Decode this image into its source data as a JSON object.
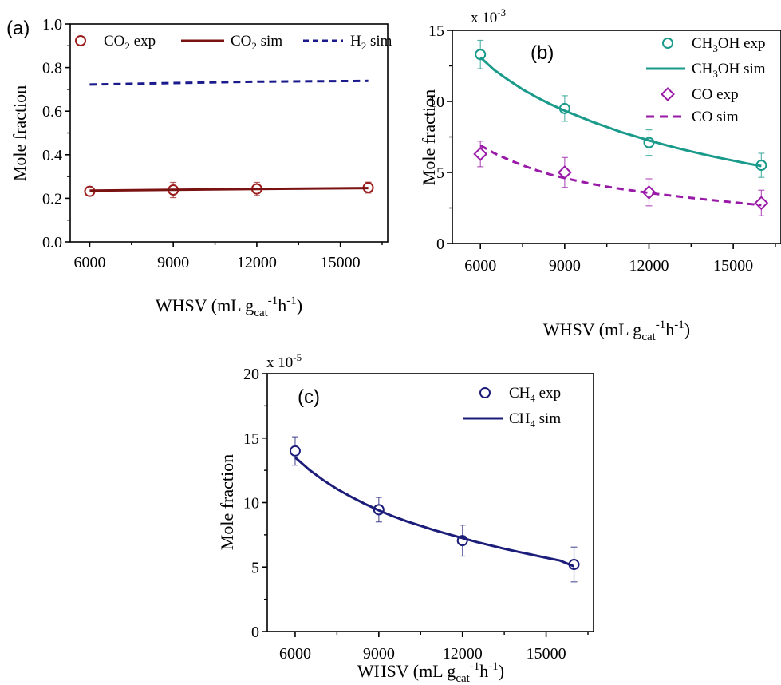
{
  "chart_data": [
    {
      "id": "a",
      "panel_label": "(a)",
      "type": "line",
      "xlabel": {
        "main": "WHSV (mL g",
        "sub": "cat",
        "sup1": "-1",
        "mid": "h",
        "sup2": "-1",
        "end": ")"
      },
      "ylabel": "Mole fraction",
      "xlim": [
        5300,
        16700
      ],
      "ylim": [
        0,
        1.0
      ],
      "xticks": [
        6000,
        9000,
        12000,
        15000
      ],
      "xtick_labels": [
        "6000",
        "9000",
        "12000",
        "15000"
      ],
      "yticks": [
        0,
        0.2,
        0.4,
        0.6,
        0.8,
        1.0
      ],
      "ytick_labels": [
        "0.0",
        "0.2",
        "0.4",
        "0.6",
        "0.8",
        "1.0"
      ],
      "exponent_label": "",
      "grid": false,
      "legend_position": "top",
      "series": [
        {
          "name": "CO₂ exp",
          "kind": "exp",
          "marker": "circle",
          "color": "#9b1c1c",
          "x": [
            6000,
            9000,
            12000,
            16000
          ],
          "y": [
            0.232,
            0.238,
            0.243,
            0.249
          ],
          "err": [
            0.02,
            0.035,
            0.03,
            0.025
          ]
        },
        {
          "name": "CO₂ sim",
          "kind": "sim",
          "style": "solid",
          "color": "#7a1212",
          "x": [
            6000,
            9000,
            12000,
            16000
          ],
          "y": [
            0.235,
            0.239,
            0.243,
            0.247
          ]
        },
        {
          "name": "H₂ sim",
          "kind": "sim",
          "style": "dashed",
          "color": "#1a1a8c",
          "x": [
            6000,
            9000,
            12000,
            16000
          ],
          "y": [
            0.722,
            0.729,
            0.735,
            0.739
          ]
        }
      ]
    },
    {
      "id": "b",
      "panel_label": "(b)",
      "type": "line",
      "xlabel": {
        "main": "WHSV (mL g",
        "sub": "cat",
        "sup1": "-1",
        "mid": "h",
        "sup2": "-1",
        "end": ")"
      },
      "ylabel": "Mole fraction",
      "xlim": [
        5000,
        16700
      ],
      "ylim": [
        0,
        15
      ],
      "xticks": [
        6000,
        9000,
        12000,
        15000
      ],
      "xtick_labels": [
        "6000",
        "9000",
        "12000",
        "15000"
      ],
      "yticks": [
        0,
        5,
        10,
        15
      ],
      "ytick_labels": [
        "0",
        "5",
        "10",
        "15"
      ],
      "exponent_label": {
        "base": "x 10",
        "exp": "-3"
      },
      "grid": false,
      "legend_position": "top-right",
      "series": [
        {
          "name": "CH₃OH exp",
          "kind": "exp",
          "marker": "circle",
          "color": "#1a9a8a",
          "x": [
            6000,
            9000,
            12000,
            16000
          ],
          "y": [
            13.3,
            9.5,
            7.1,
            5.5
          ],
          "err": [
            1.0,
            0.9,
            0.9,
            0.85
          ]
        },
        {
          "name": "CH₃OH sim",
          "kind": "sim",
          "style": "solid",
          "color": "#1a9a8a",
          "x": [
            6000,
            6500,
            7000,
            7500,
            8000,
            8500,
            9000,
            9500,
            10000,
            10500,
            11000,
            11500,
            12000,
            12500,
            13000,
            13500,
            14000,
            14500,
            15000,
            15500,
            16000
          ],
          "y": [
            13.1,
            12.2,
            11.5,
            10.85,
            10.3,
            9.8,
            9.35,
            8.95,
            8.55,
            8.2,
            7.85,
            7.55,
            7.25,
            6.98,
            6.72,
            6.48,
            6.25,
            6.03,
            5.83,
            5.63,
            5.45
          ]
        },
        {
          "name": "CO exp",
          "kind": "exp",
          "marker": "diamond",
          "color": "#9a1aa8",
          "x": [
            6000,
            9000,
            12000,
            16000
          ],
          "y": [
            6.3,
            5.0,
            3.6,
            2.85
          ],
          "err": [
            0.9,
            1.05,
            0.95,
            0.9
          ]
        },
        {
          "name": "CO sim",
          "kind": "sim",
          "style": "dashed",
          "color": "#9a1aa8",
          "x": [
            6000,
            6500,
            7000,
            7500,
            8000,
            8500,
            9000,
            9500,
            10000,
            10500,
            11000,
            11500,
            12000,
            12500,
            13000,
            13500,
            14000,
            14500,
            15000,
            15500,
            16000
          ],
          "y": [
            6.9,
            6.35,
            5.9,
            5.5,
            5.15,
            4.85,
            4.6,
            4.38,
            4.18,
            4.0,
            3.84,
            3.7,
            3.56,
            3.44,
            3.32,
            3.21,
            3.1,
            3.0,
            2.9,
            2.8,
            2.7
          ]
        }
      ]
    },
    {
      "id": "c",
      "panel_label": "(c)",
      "type": "line",
      "xlabel": {
        "main": "WHSV (mL g",
        "sub": "cat",
        "sup1": "-1",
        "mid": "h",
        "sup2": "-1",
        "end": ")"
      },
      "ylabel": "Mole fraction",
      "xlim": [
        5000,
        16700
      ],
      "ylim": [
        0,
        20
      ],
      "xticks": [
        6000,
        9000,
        12000,
        15000
      ],
      "xtick_labels": [
        "6000",
        "9000",
        "12000",
        "15000"
      ],
      "yticks": [
        0,
        5,
        10,
        15,
        20
      ],
      "ytick_labels": [
        "0",
        "5",
        "10",
        "15",
        "20"
      ],
      "exponent_label": {
        "base": "x 10",
        "exp": "-5"
      },
      "grid": false,
      "legend_position": "top-right",
      "series": [
        {
          "name": "CH₄ exp",
          "kind": "exp",
          "marker": "circle",
          "color": "#1c1c7a",
          "x": [
            6000,
            9000,
            12000,
            16000
          ],
          "y": [
            14.0,
            9.45,
            7.05,
            5.2
          ],
          "err": [
            1.1,
            0.95,
            1.2,
            1.35
          ]
        },
        {
          "name": "CH₄ sim",
          "kind": "sim",
          "style": "solid",
          "color": "#1c1c7a",
          "x": [
            6000,
            6500,
            7000,
            7500,
            8000,
            8500,
            9000,
            9500,
            10000,
            10500,
            11000,
            11500,
            12000,
            12500,
            13000,
            13500,
            14000,
            14500,
            15000,
            15500,
            16000
          ],
          "y": [
            13.5,
            12.55,
            11.75,
            11.05,
            10.45,
            9.9,
            9.4,
            8.95,
            8.55,
            8.2,
            7.85,
            7.55,
            7.25,
            6.95,
            6.68,
            6.42,
            6.18,
            5.95,
            5.72,
            5.5,
            5.05
          ]
        }
      ]
    }
  ]
}
